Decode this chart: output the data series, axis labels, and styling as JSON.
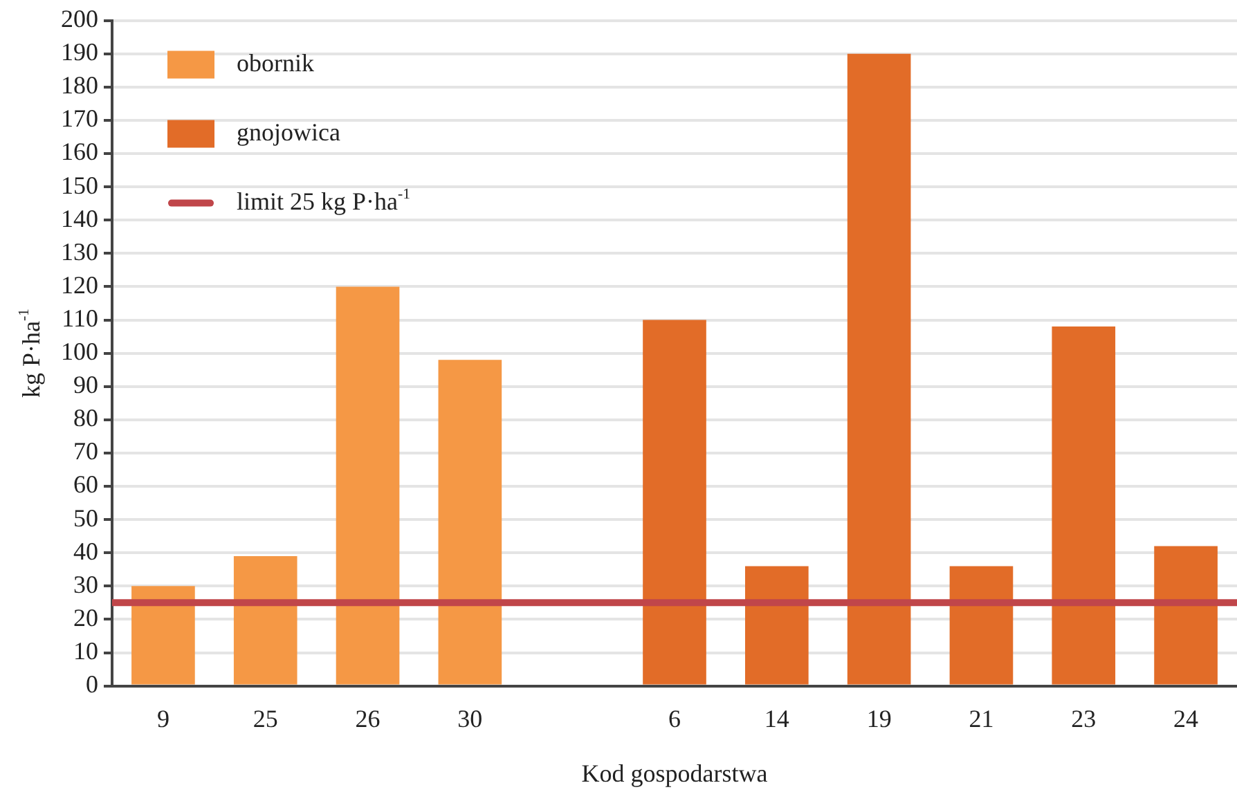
{
  "chart_data": {
    "type": "bar",
    "xlabel": "Kod gospodarstwa",
    "ylabel": "kg P·ha$^{-1}$",
    "categories": [
      "9",
      "25",
      "26",
      "30",
      null,
      "6",
      "14",
      "19",
      "21",
      "23",
      "24"
    ],
    "series": [
      {
        "name": "obornik",
        "color": "#f59845",
        "values": [
          30,
          39,
          120,
          98,
          null,
          null,
          null,
          null,
          null,
          null,
          null
        ]
      },
      {
        "name": "gnojowica",
        "color": "#e26c28",
        "values": [
          null,
          null,
          null,
          null,
          null,
          110,
          36,
          190,
          36,
          108,
          42
        ]
      }
    ],
    "ref_lines": [
      {
        "axis": "y",
        "value": 25,
        "label": "limit 25 kg P·ha$^{-1}$",
        "color": "#c0464a"
      }
    ],
    "ylim": [
      0,
      200
    ],
    "yticks": [
      0,
      10,
      20,
      30,
      40,
      50,
      60,
      70,
      80,
      90,
      100,
      110,
      120,
      130,
      140,
      150,
      160,
      170,
      180,
      190,
      200
    ],
    "grid": "y",
    "legend": "top left"
  }
}
